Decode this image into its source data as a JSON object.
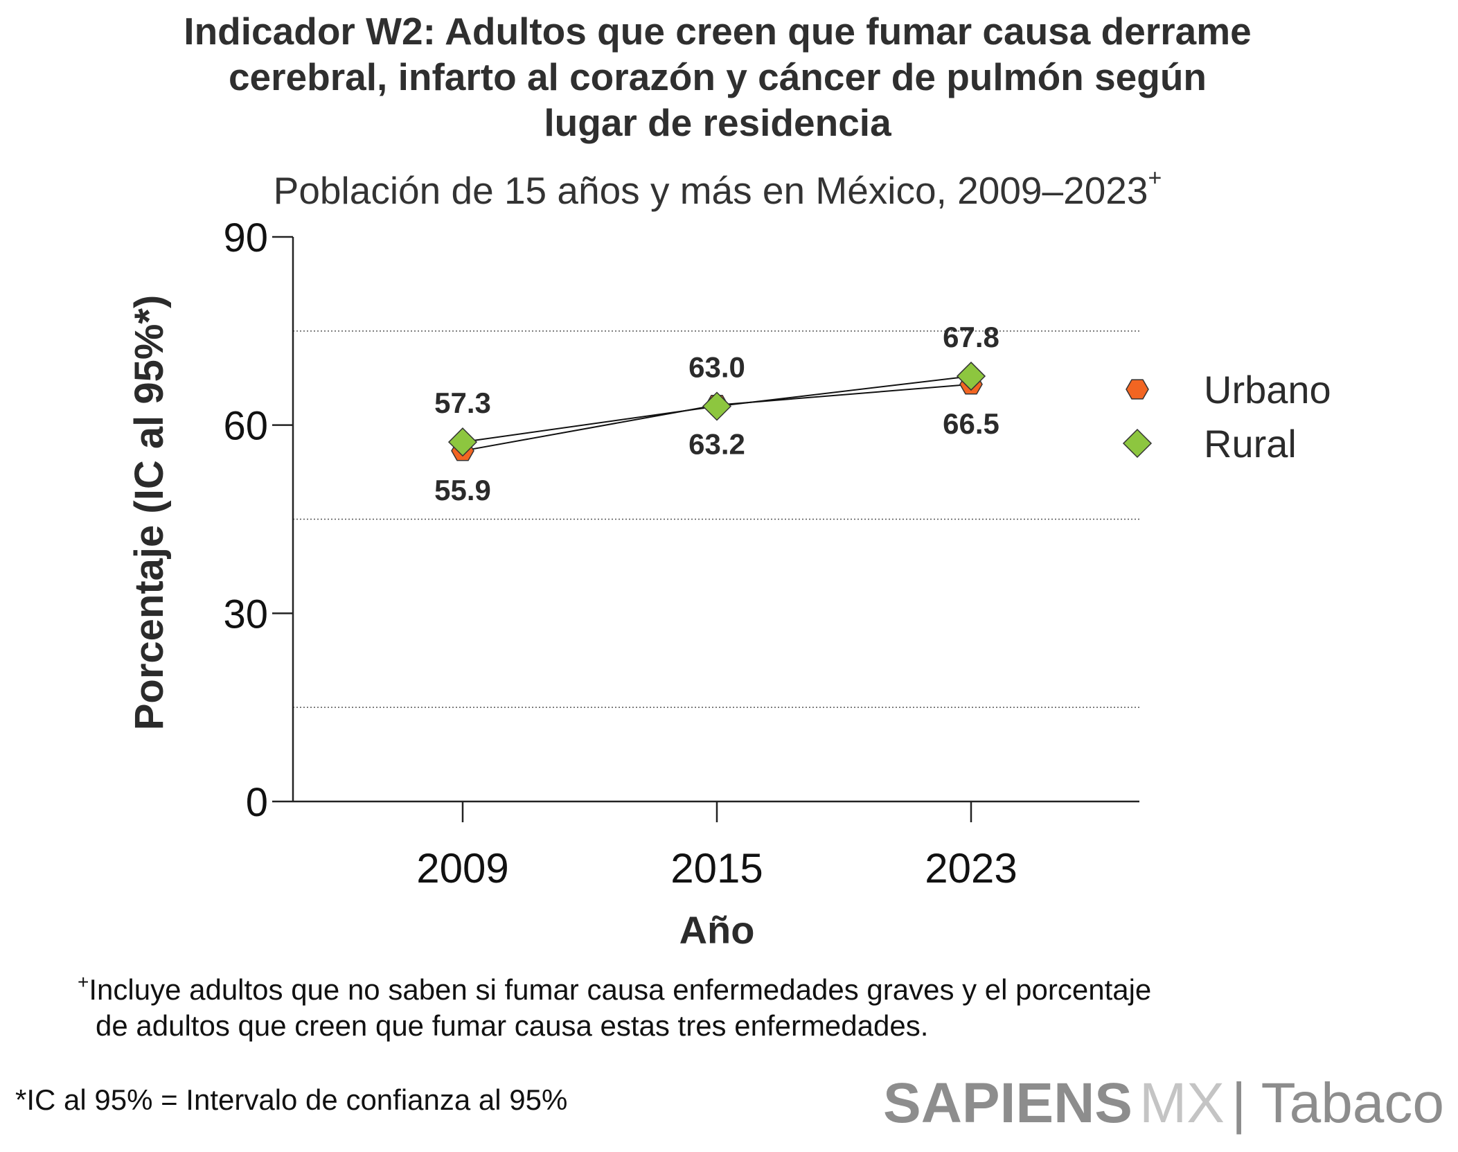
{
  "title": "Indicador W2: Adultos que creen que fumar causa derrame cerebral, infarto al corazón y cáncer de pulmón según lugar de residencia",
  "title_lines": [
    "Indicador W2: Adultos que creen que fumar causa derrame",
    "cerebral, infarto al corazón y cáncer de pulmón según",
    "lugar de residencia"
  ],
  "subtitle": "Población de 15 años y más en México, 2009–2023",
  "subtitle_mark": "+",
  "chart_data": {
    "type": "line",
    "title": "Indicador W2: Adultos que creen que fumar causa derrame cerebral, infarto al corazón y cáncer de pulmón según lugar de residencia",
    "subtitle": "Población de 15 años y más en México, 2009–2023+",
    "xlabel": "Año",
    "ylabel": "Porcentaje (IC al 95%*)",
    "categories": [
      "2009",
      "2015",
      "2023"
    ],
    "ylim": [
      0,
      90
    ],
    "yticks": [
      0,
      30,
      60,
      90
    ],
    "gridlines": [
      15,
      45,
      75
    ],
    "legend_position": "right",
    "series": [
      {
        "name": "Urbano",
        "marker": "hexagon",
        "color": "#f26522",
        "values": [
          55.9,
          63.2,
          66.5
        ],
        "labels": [
          "55.9",
          "63.2",
          "66.5"
        ],
        "label_side": "below"
      },
      {
        "name": "Rural",
        "marker": "diamond",
        "color": "#8dc63f",
        "values": [
          57.3,
          63.0,
          67.8
        ],
        "labels": [
          "57.3",
          "63.0",
          "67.8"
        ],
        "label_side": "above"
      }
    ]
  },
  "footnote_plus_mark": "+",
  "footnote_plus_line1": "Incluye adultos que no saben si fumar causa enfermedades graves y el porcentaje",
  "footnote_plus_line2": "de adultos que creen que fumar causa estas tres enfermedades.",
  "footnote_ci": "*IC al 95% = Intervalo de confianza al 95%",
  "brand": {
    "sapiens": "SAPIENS",
    "mx": "MX",
    "section": "| Tabaco"
  }
}
